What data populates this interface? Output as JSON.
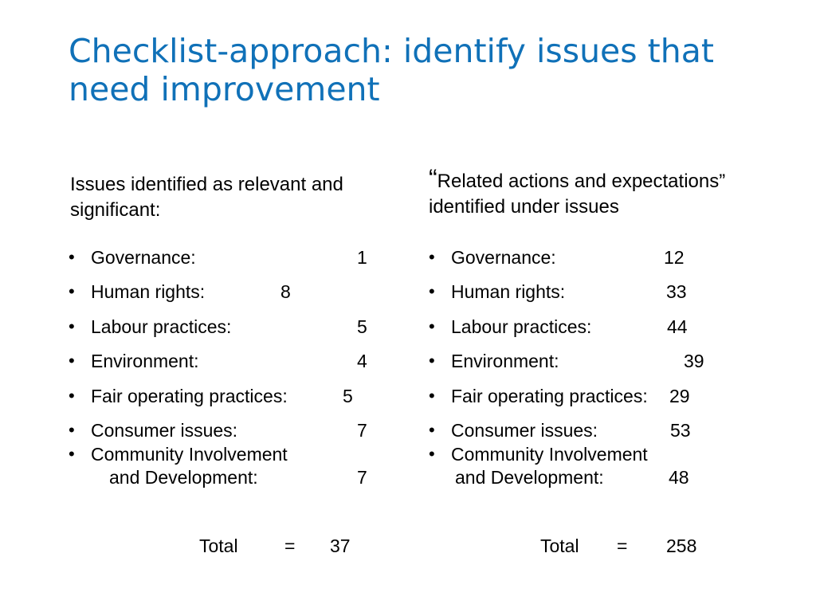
{
  "slide": {
    "title": "Checklist-approach: identify issues that need improvement"
  },
  "left": {
    "heading": "Issues identified as relevant and significant:",
    "items": [
      {
        "label": "Governance:",
        "value": "1"
      },
      {
        "label": "Human rights:",
        "value": "8"
      },
      {
        "label": "Labour practices:",
        "value": "5"
      },
      {
        "label": "Environment:",
        "value": "4"
      },
      {
        "label": "Fair operating practices:",
        "value": "5"
      },
      {
        "label": "Consumer issues:",
        "value": "7"
      },
      {
        "label": "Community Involvement",
        "label2": "and Development:",
        "value": "7"
      }
    ],
    "total_label": "Total",
    "equals": "=",
    "total_value": "37"
  },
  "right": {
    "quote_open": "“",
    "heading_line1": "Related actions and expectations”",
    "heading_line2": "identified under issues",
    "items": [
      {
        "label": "Governance:",
        "value": "12"
      },
      {
        "label": "Human rights:",
        "value": "33"
      },
      {
        "label": "Labour practices:",
        "value": "44"
      },
      {
        "label": "Environment:",
        "value": "39"
      },
      {
        "label": "Fair operating practices:",
        "value": "29"
      },
      {
        "label": "Consumer issues:",
        "value": "53"
      },
      {
        "label": "Community Involvement",
        "label2": "and Development:",
        "value": "48"
      }
    ],
    "total_label": "Total",
    "equals": "=",
    "total_value": "258"
  },
  "bullet_char": "•"
}
